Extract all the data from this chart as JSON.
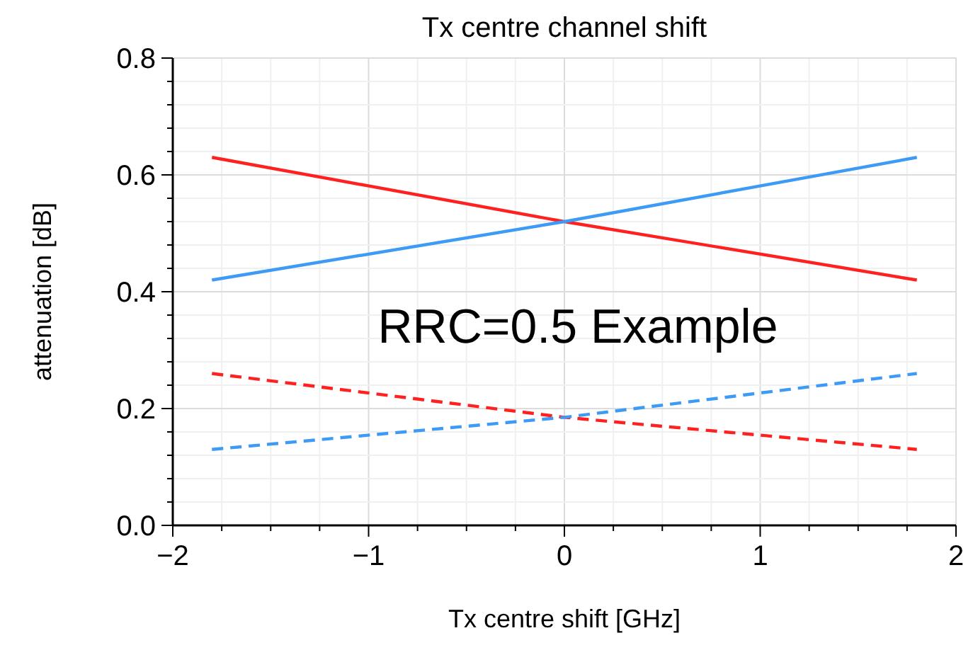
{
  "chart_data": {
    "type": "line",
    "title": "Tx centre channel shift",
    "xlabel": "Tx centre shift [GHz]",
    "ylabel": "attenuation [dB]",
    "x": [
      -1.8,
      0,
      1.8
    ],
    "series": [
      {
        "color": "#ff2020",
        "values": [
          0.63,
          0.52,
          0.42
        ],
        "line_style": "solid"
      },
      {
        "color": "#3d9bf5",
        "values": [
          0.42,
          0.52,
          0.63
        ],
        "line_style": "solid"
      },
      {
        "color": "#ff2020",
        "values": [
          0.26,
          0.185,
          0.13
        ],
        "line_style": "dashed"
      },
      {
        "color": "#3d9bf5",
        "values": [
          0.13,
          0.185,
          0.26
        ],
        "line_style": "dashed"
      }
    ],
    "xlim": [
      -2,
      2
    ],
    "ylim": [
      0,
      0.8
    ],
    "xticks": [
      {
        "value": -2,
        "label": "−2"
      },
      {
        "value": -1.75,
        "label": null
      },
      {
        "value": -1.5,
        "label": null
      },
      {
        "value": -1.25,
        "label": null
      },
      {
        "value": -1,
        "label": "−1"
      },
      {
        "value": -0.75,
        "label": null
      },
      {
        "value": -0.5,
        "label": null
      },
      {
        "value": -0.25,
        "label": null
      },
      0,
      {
        "value": 0.25,
        "label": null
      },
      {
        "value": 0.5,
        "label": null
      },
      {
        "value": 0.75,
        "label": null
      },
      1,
      {
        "value": 1.25,
        "label": null
      },
      {
        "value": 1.5,
        "label": null
      },
      {
        "value": 1.75,
        "label": null
      },
      2
    ],
    "yticks": [
      {
        "value": 0,
        "label": "0.0"
      },
      {
        "value": 0.04,
        "label": null
      },
      {
        "value": 0.08,
        "label": null
      },
      {
        "value": 0.12,
        "label": null
      },
      {
        "value": 0.16,
        "label": null
      },
      0.2,
      {
        "value": 0.24,
        "label": null
      },
      {
        "value": 0.28,
        "label": null
      },
      {
        "value": 0.32,
        "label": null
      },
      {
        "value": 0.36,
        "label": null
      },
      0.4,
      {
        "value": 0.44,
        "label": null
      },
      {
        "value": 0.48,
        "label": null
      },
      {
        "value": 0.52,
        "label": null
      },
      {
        "value": 0.56,
        "label": null
      },
      0.6,
      {
        "value": 0.64,
        "label": null
      },
      {
        "value": 0.68,
        "label": null
      },
      {
        "value": 0.72,
        "label": null
      },
      {
        "value": 0.76,
        "label": null
      },
      0.8
    ],
    "grid": true,
    "marker": "none",
    "annotations": [
      "RRC=0.5 Example"
    ]
  }
}
